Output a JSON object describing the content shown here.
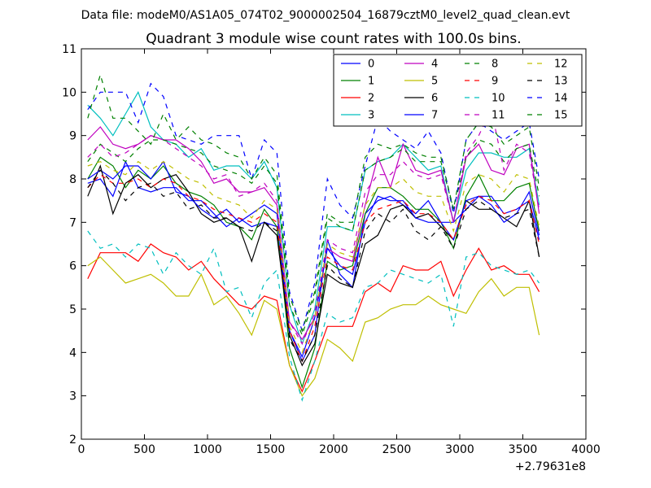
{
  "suptitle": "Data file: modeM0/AS1A05_074T02_9000002504_16879cztM0_level2_quad_clean.evt",
  "chart_data": {
    "type": "line",
    "title": "Quadrant 3 module wise count rates with 100.0s bins.",
    "xlabel": "",
    "ylabel": "",
    "xlim": [
      0,
      4000
    ],
    "ylim": [
      2,
      11
    ],
    "x_offset_label": "+2.79631e8",
    "xticks": [
      0,
      500,
      1000,
      1500,
      2000,
      2500,
      3000,
      3500,
      4000
    ],
    "yticks": [
      2,
      3,
      4,
      5,
      6,
      7,
      8,
      9,
      10,
      11
    ],
    "legend_position": "top-right",
    "x": [
      50,
      150,
      250,
      350,
      450,
      550,
      650,
      750,
      850,
      950,
      1050,
      1150,
      1250,
      1350,
      1450,
      1550,
      1650,
      1750,
      1850,
      1950,
      2050,
      2150,
      2250,
      2350,
      2450,
      2550,
      2650,
      2750,
      2850,
      2950,
      3050,
      3150,
      3250,
      3350,
      3450,
      3550,
      3630
    ],
    "series": [
      {
        "name": "0",
        "color": "#0000ff",
        "dash": "solid",
        "values": [
          7.9,
          8.0,
          7.6,
          8.4,
          7.8,
          7.7,
          7.8,
          7.8,
          7.5,
          7.5,
          7.2,
          6.9,
          7.1,
          6.9,
          7.0,
          6.9,
          4.5,
          3.8,
          4.4,
          6.6,
          5.8,
          5.5,
          7.2,
          7.5,
          7.6,
          7.4,
          7.2,
          7.5,
          7.0,
          7.0,
          7.3,
          7.6,
          7.6,
          7.2,
          7.3,
          7.5,
          6.6
        ]
      },
      {
        "name": "1",
        "color": "#008000",
        "dash": "solid",
        "values": [
          8.0,
          8.5,
          8.3,
          7.8,
          8.2,
          8.0,
          8.3,
          7.9,
          7.7,
          7.6,
          7.4,
          7.0,
          6.9,
          6.6,
          7.3,
          6.9,
          4.1,
          3.2,
          4.1,
          6.1,
          5.9,
          6.0,
          7.2,
          7.8,
          7.8,
          7.6,
          7.3,
          7.3,
          7.0,
          6.4,
          7.6,
          8.1,
          7.5,
          7.5,
          7.8,
          7.9,
          6.8
        ]
      },
      {
        "name": "2",
        "color": "#ff0000",
        "dash": "solid",
        "values": [
          5.7,
          6.3,
          6.3,
          6.3,
          6.1,
          6.5,
          6.3,
          6.2,
          5.9,
          6.1,
          5.7,
          5.4,
          5.1,
          5.0,
          5.3,
          5.2,
          3.7,
          3.1,
          3.8,
          4.6,
          4.6,
          4.6,
          5.4,
          5.6,
          5.4,
          6.0,
          5.9,
          5.9,
          6.1,
          5.3,
          5.9,
          6.4,
          5.9,
          6.0,
          5.8,
          5.8,
          5.4
        ]
      },
      {
        "name": "3",
        "color": "#00bfbf",
        "dash": "solid",
        "values": [
          9.7,
          9.4,
          9.0,
          9.5,
          10.0,
          9.2,
          8.9,
          8.8,
          8.5,
          8.7,
          8.2,
          8.3,
          8.3,
          8.0,
          8.4,
          7.8,
          5.1,
          4.2,
          5.0,
          6.9,
          6.9,
          6.8,
          8.2,
          8.4,
          8.5,
          8.8,
          8.5,
          8.2,
          8.3,
          7.0,
          8.2,
          8.6,
          8.6,
          8.5,
          8.5,
          8.7,
          7.4
        ]
      },
      {
        "name": "4",
        "color": "#bf00bf",
        "dash": "solid",
        "values": [
          8.9,
          9.2,
          8.8,
          8.7,
          8.8,
          9.0,
          8.9,
          8.9,
          8.7,
          8.4,
          7.9,
          8.0,
          7.7,
          7.7,
          7.8,
          7.4,
          4.7,
          4.3,
          4.8,
          6.4,
          6.2,
          6.1,
          7.4,
          8.5,
          7.8,
          8.8,
          8.2,
          8.1,
          8.2,
          7.0,
          8.5,
          8.8,
          8.2,
          8.1,
          8.7,
          8.8,
          7.2
        ]
      },
      {
        "name": "5",
        "color": "#bfbf00",
        "dash": "solid",
        "values": [
          6.0,
          6.2,
          5.9,
          5.6,
          5.7,
          5.8,
          5.6,
          5.3,
          5.3,
          5.8,
          5.1,
          5.3,
          4.9,
          4.4,
          5.2,
          5.0,
          3.7,
          3.0,
          3.4,
          4.3,
          4.1,
          3.8,
          4.7,
          4.8,
          5.0,
          5.1,
          5.1,
          5.3,
          5.1,
          5.0,
          4.9,
          5.4,
          5.7,
          5.3,
          5.5,
          5.5,
          4.4
        ]
      },
      {
        "name": "6",
        "color": "#000000",
        "dash": "solid",
        "values": [
          7.6,
          8.3,
          7.2,
          7.9,
          8.1,
          7.8,
          8.0,
          8.1,
          7.7,
          7.2,
          7.0,
          7.1,
          6.9,
          6.1,
          7.0,
          6.7,
          4.4,
          3.7,
          4.2,
          5.8,
          5.6,
          5.5,
          6.5,
          6.7,
          7.3,
          7.4,
          7.1,
          7.2,
          6.9,
          6.6,
          7.5,
          7.3,
          7.3,
          7.1,
          6.9,
          7.5,
          6.2
        ]
      },
      {
        "name": "7",
        "color": "#0000ff",
        "dash": "solid",
        "values": [
          8.0,
          8.2,
          8.0,
          8.3,
          8.3,
          8.0,
          8.4,
          7.7,
          7.6,
          7.3,
          7.1,
          7.3,
          7.0,
          7.2,
          7.4,
          7.2,
          4.5,
          3.9,
          4.8,
          6.4,
          6.0,
          5.8,
          7.0,
          7.6,
          7.5,
          7.5,
          7.1,
          7.0,
          7.0,
          6.6,
          7.5,
          7.6,
          7.4,
          7.0,
          7.2,
          7.7,
          6.7
        ]
      },
      {
        "name": "8",
        "color": "#008000",
        "dash": "dashed",
        "values": [
          8.4,
          8.8,
          8.6,
          8.4,
          8.7,
          8.9,
          8.9,
          8.8,
          8.7,
          8.6,
          8.3,
          8.2,
          8.1,
          7.9,
          8.3,
          7.9,
          5.1,
          4.4,
          5.3,
          7.1,
          6.9,
          6.8,
          8.2,
          8.4,
          8.5,
          8.7,
          8.4,
          8.4,
          8.4,
          7.3,
          8.5,
          8.9,
          8.8,
          8.4,
          8.7,
          8.8,
          7.6
        ]
      },
      {
        "name": "9",
        "color": "#ff0000",
        "dash": "dashed",
        "values": [
          7.8,
          8.1,
          7.9,
          7.9,
          8.0,
          7.8,
          8.0,
          7.9,
          7.6,
          7.5,
          7.3,
          7.2,
          7.1,
          7.0,
          7.2,
          7.0,
          4.5,
          3.8,
          4.6,
          6.2,
          6.0,
          5.9,
          7.0,
          7.3,
          7.4,
          7.5,
          7.2,
          7.2,
          7.0,
          6.6,
          7.4,
          7.6,
          7.5,
          7.2,
          7.3,
          7.5,
          6.5
        ]
      },
      {
        "name": "10",
        "color": "#00bfbf",
        "dash": "dashed",
        "values": [
          6.8,
          6.4,
          6.5,
          6.2,
          6.5,
          6.4,
          5.8,
          6.3,
          6.0,
          5.8,
          6.4,
          5.4,
          5.5,
          4.8,
          5.6,
          5.9,
          3.9,
          2.9,
          3.8,
          4.9,
          4.7,
          4.8,
          5.5,
          5.6,
          5.9,
          5.8,
          5.7,
          5.6,
          5.8,
          4.6,
          6.2,
          6.3,
          6.0,
          5.9,
          5.8,
          5.9,
          5.6
        ]
      },
      {
        "name": "11",
        "color": "#bf00bf",
        "dash": "dashed",
        "values": [
          8.5,
          8.8,
          8.5,
          8.6,
          8.8,
          9.0,
          8.9,
          8.7,
          8.5,
          8.3,
          8.0,
          8.1,
          7.6,
          7.7,
          7.9,
          7.5,
          4.7,
          4.2,
          4.9,
          6.6,
          6.4,
          6.3,
          7.7,
          8.1,
          8.1,
          8.4,
          8.1,
          8.0,
          8.1,
          7.0,
          8.6,
          9.0,
          9.6,
          8.2,
          8.8,
          8.6,
          7.3
        ]
      },
      {
        "name": "12",
        "color": "#bfbf00",
        "dash": "dashed",
        "values": [
          8.3,
          8.4,
          8.2,
          8.1,
          8.4,
          8.2,
          8.4,
          8.2,
          8.0,
          7.9,
          7.6,
          7.5,
          7.4,
          7.1,
          7.5,
          7.3,
          4.6,
          4.0,
          4.8,
          6.5,
          6.3,
          6.2,
          7.4,
          7.8,
          7.8,
          8.0,
          7.7,
          7.6,
          7.6,
          6.8,
          7.9,
          8.1,
          8.0,
          7.7,
          8.1,
          8.0,
          6.9
        ]
      },
      {
        "name": "13",
        "color": "#000000",
        "dash": "dashed",
        "values": [
          7.8,
          8.2,
          7.9,
          7.5,
          7.8,
          7.9,
          7.6,
          7.7,
          7.3,
          7.4,
          7.1,
          7.1,
          6.9,
          6.8,
          7.0,
          6.8,
          4.3,
          3.8,
          4.4,
          6.0,
          5.7,
          5.5,
          6.8,
          7.2,
          7.0,
          7.3,
          6.8,
          6.6,
          6.9,
          6.4,
          7.3,
          7.5,
          7.3,
          7.1,
          7.2,
          7.3,
          6.2
        ]
      },
      {
        "name": "14",
        "color": "#0000ff",
        "dash": "dashed",
        "values": [
          9.6,
          10.0,
          10.0,
          10.0,
          9.3,
          10.2,
          9.9,
          9.0,
          8.9,
          8.8,
          9.0,
          9.0,
          9.0,
          8.0,
          8.9,
          8.6,
          5.4,
          4.5,
          5.6,
          8.0,
          7.4,
          7.1,
          8.3,
          9.4,
          9.1,
          8.9,
          8.7,
          9.1,
          8.6,
          7.2,
          8.9,
          9.3,
          9.1,
          8.9,
          9.1,
          9.3,
          8.0
        ]
      },
      {
        "name": "15",
        "color": "#008000",
        "dash": "dashed",
        "values": [
          9.4,
          10.4,
          9.4,
          9.4,
          9.1,
          8.8,
          9.5,
          8.9,
          9.2,
          8.9,
          8.8,
          8.6,
          8.5,
          8.0,
          8.5,
          8.1,
          5.3,
          4.5,
          5.4,
          7.2,
          7.0,
          7.0,
          8.5,
          8.8,
          8.7,
          8.8,
          8.6,
          8.5,
          8.5,
          7.3,
          8.9,
          9.3,
          9.2,
          8.8,
          9.0,
          9.2,
          7.8
        ]
      }
    ]
  }
}
